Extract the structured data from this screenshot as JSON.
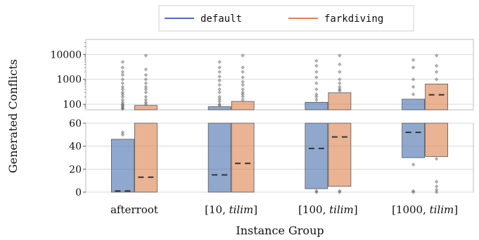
{
  "chart_data": {
    "type": "box",
    "xlabel": "Instance Group",
    "ylabel": "Generated Conflicts",
    "legend": {
      "placement": "top"
    },
    "categories": [
      {
        "base": "afterroot",
        "italic": ""
      },
      {
        "base": "[10, ",
        "italic": "tilim",
        "close": "]"
      },
      {
        "base": "[100, ",
        "italic": "tilim",
        "close": "]"
      },
      {
        "base": "[1000, ",
        "italic": "tilim",
        "close": "]"
      }
    ],
    "category_labels": [
      "afterroot",
      "[10, tilim]",
      "[100, tilim]",
      "[1000, tilim]"
    ],
    "axes": {
      "upper": {
        "scale": "log",
        "ylim": [
          60,
          40000
        ],
        "ticks": [
          100,
          1000,
          10000
        ],
        "tick_labels": [
          "100",
          "1000",
          "10000"
        ]
      },
      "lower": {
        "scale": "linear",
        "ylim": [
          0,
          60
        ],
        "ticks": [
          0,
          20,
          40,
          60
        ],
        "tick_labels": [
          "0",
          "20",
          "40",
          "60"
        ]
      }
    },
    "grid": true,
    "series": [
      {
        "name": "default",
        "color": "#4c72b0",
        "boxes": [
          {
            "q1": 0,
            "median": 1,
            "q3": 46,
            "outliers": [
              50,
              52,
              65,
              70,
              80,
              90,
              100,
              120,
              150,
              200,
              250,
              300,
              400,
              500,
              700,
              1000,
              1500,
              2000,
              3000,
              5000
            ]
          },
          {
            "q1": 0,
            "median": 15,
            "q3": 80,
            "outliers": [
              90,
              100,
              130,
              160,
              200,
              300,
              400,
              600,
              900,
              1300,
              2000,
              3000,
              5000
            ]
          },
          {
            "q1": 3,
            "median": 38,
            "q3": 120,
            "outliers": [
              0,
              1,
              150,
              200,
              250,
              400,
              700,
              1200,
              2000,
              3500,
              5500
            ]
          },
          {
            "q1": 30,
            "median": 52,
            "q3": 160,
            "outliers": [
              0,
              1,
              24,
              250,
              500,
              1000,
              3000,
              6000
            ]
          }
        ]
      },
      {
        "name": "farkdiving",
        "color": "#dd8452",
        "boxes": [
          {
            "q1": 0,
            "median": 13,
            "q3": 90,
            "outliers": [
              100,
              120,
              150,
              200,
              300,
              400,
              500,
              700,
              1000,
              1500,
              2500,
              9000
            ]
          },
          {
            "q1": 0,
            "median": 25,
            "q3": 130,
            "outliers": [
              150,
              200,
              250,
              300,
              400,
              600,
              800,
              1200,
              2000,
              3000,
              9000
            ]
          },
          {
            "q1": 5,
            "median": 48,
            "q3": 290,
            "outliers": [
              0,
              1,
              350,
              400,
              500,
              700,
              1000,
              2000,
              4000,
              9000
            ]
          },
          {
            "q1": 31,
            "median": 240,
            "q3": 650,
            "outliers": [
              0,
              2,
              5,
              9,
              29,
              1000,
              2000,
              3500,
              9000
            ]
          }
        ]
      }
    ]
  }
}
